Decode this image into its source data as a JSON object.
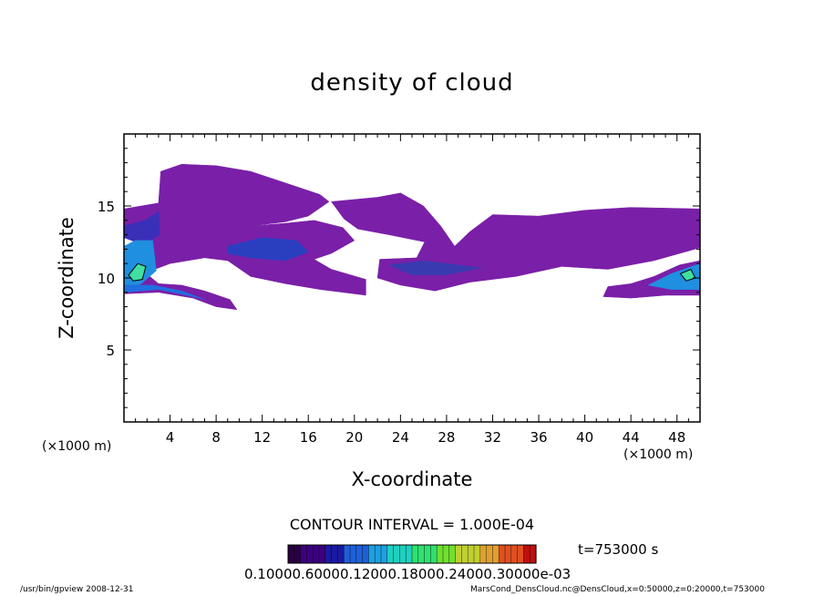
{
  "chart_data": {
    "type": "heatmap",
    "title": "density of cloud",
    "xlabel": "X-coordinate",
    "ylabel": "Z-coordinate",
    "x_unit_left": "(×1000 m)",
    "x_unit_right": "(×1000 m)",
    "xlim": [
      0,
      50
    ],
    "ylim": [
      0,
      20
    ],
    "x_ticks": [
      4,
      8,
      12,
      16,
      20,
      24,
      28,
      32,
      36,
      40,
      44,
      48
    ],
    "y_ticks": [
      5,
      10,
      15
    ],
    "contour_interval": "CONTOUR INTERVAL = 1.000E-04",
    "time": "t=753000 s",
    "colorbar_labels": [
      "0.1000e-6",
      "0.6000e-4",
      "0.1200e-3",
      "0.1800e-3",
      "0.2400e-3",
      "0.3000e-3"
    ],
    "colorbar_text": "0.10000.60000.12000.18000.24000.30000e-03",
    "colorbar_colors": [
      "#2a0040",
      "#3b0080",
      "#1a1aa0",
      "#1f5fd8",
      "#1f9fe0",
      "#1fd0c0",
      "#30e070",
      "#70e030",
      "#c0d030",
      "#e0a030",
      "#e05020",
      "#c01010"
    ],
    "regions": [
      {
        "name": "upper-broad-layer",
        "level": "low",
        "color": "#7a1fa8",
        "points": [
          [
            0,
            14.8
          ],
          [
            3,
            15.2
          ],
          [
            3.2,
            17.4
          ],
          [
            5,
            17.9
          ],
          [
            8,
            17.8
          ],
          [
            11,
            17.4
          ],
          [
            14,
            16.6
          ],
          [
            17,
            15.8
          ],
          [
            17.8,
            15.3
          ],
          [
            16,
            14.3
          ],
          [
            14,
            13.9
          ],
          [
            11,
            13.6
          ],
          [
            9,
            12.6
          ],
          [
            7,
            12.2
          ],
          [
            5,
            12.4
          ],
          [
            3,
            13.0
          ],
          [
            1.5,
            13.4
          ],
          [
            0,
            13.6
          ]
        ]
      },
      {
        "name": "mid-left-layer",
        "level": "low",
        "color": "#7a1fa8",
        "points": [
          [
            0.5,
            11.0
          ],
          [
            2,
            13.0
          ],
          [
            5,
            13.4
          ],
          [
            8,
            12.9
          ],
          [
            11,
            13.6
          ],
          [
            14,
            13.8
          ],
          [
            16.5,
            14.0
          ],
          [
            19,
            13.5
          ],
          [
            20,
            12.6
          ],
          [
            18,
            11.7
          ],
          [
            16.5,
            11.3
          ],
          [
            18,
            10.6
          ],
          [
            21,
            9.9
          ],
          [
            21,
            8.8
          ],
          [
            17,
            9.2
          ],
          [
            14,
            9.6
          ],
          [
            11,
            10.1
          ],
          [
            9,
            11.2
          ],
          [
            7,
            11.4
          ],
          [
            4,
            11.0
          ],
          [
            2,
            10.4
          ]
        ]
      },
      {
        "name": "middle-layer",
        "level": "low",
        "color": "#7a1fa8",
        "points": [
          [
            18,
            15.3
          ],
          [
            22,
            15.6
          ],
          [
            24,
            15.9
          ],
          [
            26,
            15.0
          ],
          [
            27.5,
            13.6
          ],
          [
            28.7,
            12.2
          ],
          [
            30,
            13.2
          ],
          [
            32,
            14.4
          ],
          [
            36,
            14.3
          ],
          [
            40,
            14.7
          ],
          [
            44,
            14.9
          ],
          [
            50,
            14.8
          ],
          [
            50,
            12.1
          ],
          [
            46,
            11.2
          ],
          [
            42,
            10.6
          ],
          [
            38,
            10.8
          ],
          [
            34,
            10.1
          ],
          [
            30,
            9.7
          ],
          [
            27,
            9.1
          ],
          [
            24,
            9.5
          ],
          [
            22,
            10.0
          ],
          [
            22.2,
            11.3
          ],
          [
            25.4,
            11.4
          ],
          [
            26.1,
            12.5
          ],
          [
            23,
            13.0
          ],
          [
            20.3,
            13.4
          ],
          [
            19.1,
            14.1
          ]
        ]
      },
      {
        "name": "lower-left-tongue",
        "level": "low",
        "color": "#7a1fa8",
        "points": [
          [
            0,
            8.9
          ],
          [
            3,
            9.0
          ],
          [
            6,
            8.6
          ],
          [
            8,
            8.0
          ],
          [
            9.8,
            7.8
          ],
          [
            9.2,
            8.5
          ],
          [
            7,
            9.1
          ],
          [
            5,
            9.5
          ],
          [
            3,
            9.6
          ],
          [
            1.8,
            10.4
          ],
          [
            0,
            10.6
          ]
        ]
      },
      {
        "name": "lower-right-patch",
        "level": "low",
        "color": "#7a1fa8",
        "points": [
          [
            41.6,
            8.7
          ],
          [
            44,
            8.6
          ],
          [
            47,
            8.8
          ],
          [
            50,
            8.8
          ],
          [
            50,
            11.2
          ],
          [
            48.2,
            10.9
          ],
          [
            46,
            10.1
          ],
          [
            44,
            9.6
          ],
          [
            42,
            9.4
          ]
        ]
      },
      {
        "name": "upper-dense-core",
        "level": "mid",
        "color": "#3a2fb8",
        "points": [
          [
            0,
            13.6
          ],
          [
            1.8,
            14.0
          ],
          [
            3,
            14.6
          ],
          [
            3.1,
            13.0
          ],
          [
            1.7,
            12.3
          ],
          [
            0,
            12.8
          ]
        ]
      },
      {
        "name": "center-left-core",
        "level": "mid",
        "color": "#2a3fc0",
        "points": [
          [
            9,
            12.2
          ],
          [
            12,
            12.8
          ],
          [
            15,
            12.6
          ],
          [
            16,
            11.8
          ],
          [
            14,
            11.2
          ],
          [
            11,
            11.4
          ],
          [
            9,
            11.7
          ]
        ]
      },
      {
        "name": "center-core",
        "level": "mid",
        "color": "#3a3ab0",
        "points": [
          [
            23,
            10.9
          ],
          [
            26,
            11.2
          ],
          [
            29,
            10.9
          ],
          [
            31,
            10.7
          ],
          [
            28,
            10.2
          ],
          [
            25,
            10.2
          ]
        ]
      },
      {
        "name": "left-wall-core",
        "level": "high",
        "color": "#1f8fe0",
        "points": [
          [
            0,
            9.2
          ],
          [
            1.5,
            9.6
          ],
          [
            2.8,
            10.5
          ],
          [
            2.5,
            12.6
          ],
          [
            1,
            12.6
          ],
          [
            0,
            12.2
          ]
        ]
      },
      {
        "name": "left-wall-peak",
        "level": "peak",
        "color": "#40e0a0",
        "points": [
          [
            0.4,
            10.2
          ],
          [
            1.2,
            11.0
          ],
          [
            1.9,
            10.8
          ],
          [
            1.6,
            9.9
          ],
          [
            0.8,
            9.8
          ]
        ]
      },
      {
        "name": "lower-left-core",
        "level": "high",
        "color": "#1f6fe0",
        "points": [
          [
            0,
            9.0
          ],
          [
            3,
            9.2
          ],
          [
            5.5,
            8.8
          ],
          [
            7,
            8.5
          ],
          [
            5,
            9.1
          ],
          [
            2.5,
            9.5
          ],
          [
            0,
            9.5
          ]
        ]
      },
      {
        "name": "right-core",
        "level": "high",
        "color": "#1f8fe0",
        "points": [
          [
            45.5,
            9.5
          ],
          [
            47.5,
            10.3
          ],
          [
            50,
            11.0
          ],
          [
            50,
            9.2
          ],
          [
            47.5,
            9.2
          ]
        ]
      },
      {
        "name": "right-peak",
        "level": "peak",
        "color": "#40e0a0",
        "points": [
          [
            48.3,
            10.3
          ],
          [
            49.2,
            10.6
          ],
          [
            49.6,
            10.0
          ],
          [
            48.8,
            9.8
          ]
        ]
      }
    ]
  },
  "footer": {
    "left": "/usr/bin/gpview   2008-12-31",
    "right": "MarsCond_DensCloud.nc@DensCloud,x=0:50000,z=0:20000,t=753000"
  }
}
